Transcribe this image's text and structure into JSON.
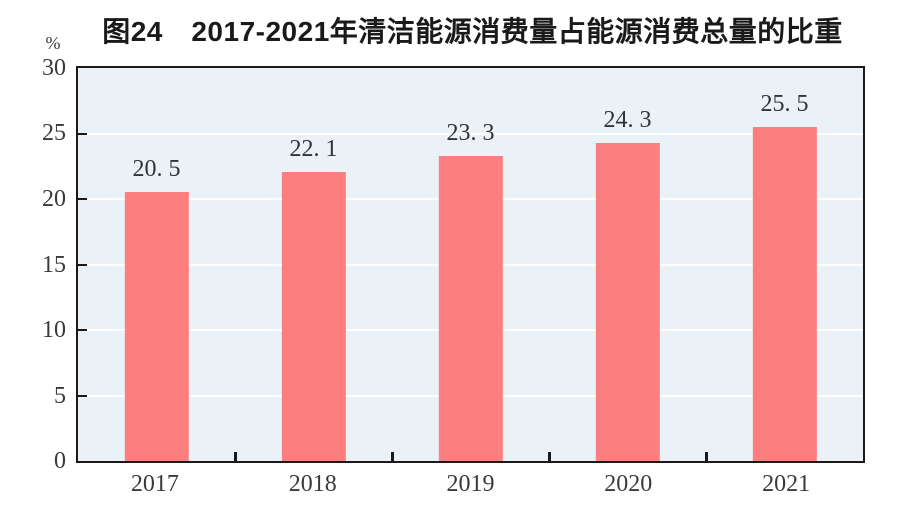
{
  "chart_data": {
    "type": "bar",
    "title": "图24　2017-2021年清洁能源消费量占能源消费总量的比重",
    "ylabel": "%",
    "xlabel": "",
    "categories": [
      "2017",
      "2018",
      "2019",
      "2020",
      "2021"
    ],
    "values": [
      20.5,
      22.1,
      23.3,
      24.3,
      25.5
    ],
    "value_labels": [
      "20. 5",
      "22. 1",
      "23. 3",
      "24. 3",
      "25. 5"
    ],
    "ylim": [
      0,
      30
    ],
    "yticks": [
      0,
      5,
      10,
      15,
      20,
      25,
      30
    ],
    "grid": true,
    "legend_position": "none",
    "colors": {
      "bar": "#FD7E7E",
      "plot_background": "#EBF2F7",
      "gridline": "#FFFFFF",
      "axis": "#1A1A1A",
      "text": "#333333"
    }
  }
}
